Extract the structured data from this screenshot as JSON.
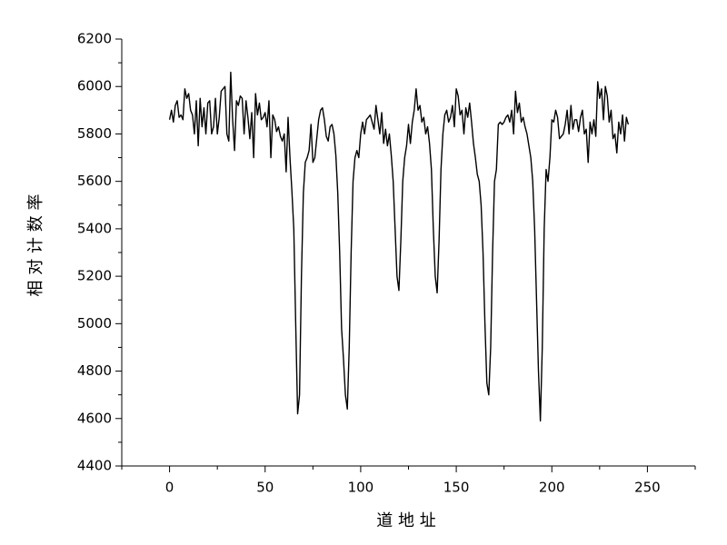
{
  "chart_data": {
    "type": "line",
    "xlabel": "道 地 址",
    "ylabel": "相 对 计 数 率",
    "color": "#000000",
    "xlim": [
      -25,
      275
    ],
    "xticks": [
      0,
      50,
      100,
      150,
      200,
      250
    ],
    "xminorticks": [
      -25,
      25,
      75,
      125,
      175,
      225,
      275
    ],
    "ylim": [
      4400,
      6200
    ],
    "yticks": [
      4400,
      4600,
      4800,
      5000,
      5200,
      5400,
      5600,
      5800,
      6000,
      6200
    ],
    "yminorticks": [
      4500,
      4700,
      4900,
      5100,
      5300,
      5500,
      5700,
      5900,
      6100
    ],
    "x": [
      0,
      1,
      2,
      3,
      4,
      5,
      6,
      7,
      8,
      9,
      10,
      11,
      12,
      13,
      14,
      15,
      16,
      17,
      18,
      19,
      20,
      21,
      22,
      23,
      24,
      25,
      26,
      27,
      28,
      29,
      30,
      31,
      32,
      33,
      34,
      35,
      36,
      37,
      38,
      39,
      40,
      41,
      42,
      43,
      44,
      45,
      46,
      47,
      48,
      49,
      50,
      51,
      52,
      53,
      54,
      55,
      56,
      57,
      58,
      59,
      60,
      61,
      62,
      63,
      64,
      65,
      66,
      67,
      68,
      69,
      70,
      71,
      72,
      73,
      74,
      75,
      76,
      77,
      78,
      79,
      80,
      81,
      82,
      83,
      84,
      85,
      86,
      87,
      88,
      89,
      90,
      91,
      92,
      93,
      94,
      95,
      96,
      97,
      98,
      99,
      100,
      101,
      102,
      103,
      104,
      105,
      106,
      107,
      108,
      109,
      110,
      111,
      112,
      113,
      114,
      115,
      116,
      117,
      118,
      119,
      120,
      121,
      122,
      123,
      124,
      125,
      126,
      127,
      128,
      129,
      130,
      131,
      132,
      133,
      134,
      135,
      136,
      137,
      138,
      139,
      140,
      141,
      142,
      143,
      144,
      145,
      146,
      147,
      148,
      149,
      150,
      151,
      152,
      153,
      154,
      155,
      156,
      157,
      158,
      159,
      160,
      161,
      162,
      163,
      164,
      165,
      166,
      167,
      168,
      169,
      170,
      171,
      172,
      173,
      174,
      175,
      176,
      177,
      178,
      179,
      180,
      181,
      182,
      183,
      184,
      185,
      186,
      187,
      188,
      189,
      190,
      191,
      192,
      193,
      194,
      195,
      196,
      197,
      198,
      199,
      200,
      201,
      202,
      203,
      204,
      205,
      206,
      207,
      208,
      209,
      210,
      211,
      212,
      213,
      214,
      215,
      216,
      217,
      218,
      219,
      220,
      221,
      222,
      223,
      224,
      225,
      226,
      227,
      228,
      229,
      230,
      231,
      232,
      233,
      234,
      235,
      236,
      237,
      238,
      239,
      240
    ],
    "values": [
      5860,
      5900,
      5850,
      5920,
      5940,
      5870,
      5880,
      5860,
      5990,
      5950,
      5970,
      5900,
      5880,
      5800,
      5940,
      5750,
      5950,
      5830,
      5910,
      5800,
      5930,
      5940,
      5800,
      5830,
      5950,
      5800,
      5870,
      5980,
      5990,
      6000,
      5800,
      5770,
      6060,
      5860,
      5730,
      5940,
      5920,
      5960,
      5950,
      5800,
      5940,
      5870,
      5780,
      5890,
      5700,
      5970,
      5880,
      5930,
      5860,
      5870,
      5890,
      5830,
      5940,
      5700,
      5880,
      5860,
      5810,
      5830,
      5790,
      5770,
      5800,
      5640,
      5870,
      5700,
      5560,
      5400,
      5000,
      4620,
      4700,
      5200,
      5550,
      5680,
      5700,
      5730,
      5840,
      5680,
      5700,
      5780,
      5860,
      5900,
      5910,
      5860,
      5790,
      5770,
      5830,
      5840,
      5800,
      5710,
      5550,
      5300,
      4980,
      4850,
      4700,
      4640,
      4900,
      5300,
      5600,
      5700,
      5730,
      5700,
      5800,
      5850,
      5800,
      5860,
      5870,
      5880,
      5850,
      5820,
      5920,
      5860,
      5800,
      5890,
      5760,
      5820,
      5750,
      5800,
      5710,
      5600,
      5400,
      5200,
      5140,
      5350,
      5600,
      5700,
      5750,
      5840,
      5760,
      5850,
      5900,
      5990,
      5900,
      5920,
      5850,
      5870,
      5800,
      5830,
      5760,
      5650,
      5400,
      5200,
      5130,
      5350,
      5650,
      5800,
      5880,
      5900,
      5850,
      5870,
      5920,
      5830,
      5990,
      5960,
      5880,
      5900,
      5800,
      5910,
      5870,
      5930,
      5850,
      5760,
      5700,
      5630,
      5600,
      5500,
      5300,
      5000,
      4750,
      4700,
      4900,
      5300,
      5600,
      5650,
      5840,
      5850,
      5840,
      5850,
      5870,
      5880,
      5850,
      5900,
      5800,
      5980,
      5890,
      5930,
      5850,
      5870,
      5830,
      5800,
      5750,
      5700,
      5600,
      5400,
      5100,
      4800,
      4590,
      4900,
      5400,
      5650,
      5600,
      5700,
      5860,
      5850,
      5900,
      5870,
      5780,
      5790,
      5800,
      5840,
      5900,
      5800,
      5920,
      5820,
      5860,
      5860,
      5810,
      5870,
      5900,
      5800,
      5820,
      5680,
      5850,
      5800,
      5860,
      5790,
      6020,
      5950,
      5990,
      5860,
      6000,
      5960,
      5850,
      5900,
      5780,
      5800,
      5720,
      5850,
      5800,
      5880,
      5770,
      5870,
      5840
    ]
  }
}
